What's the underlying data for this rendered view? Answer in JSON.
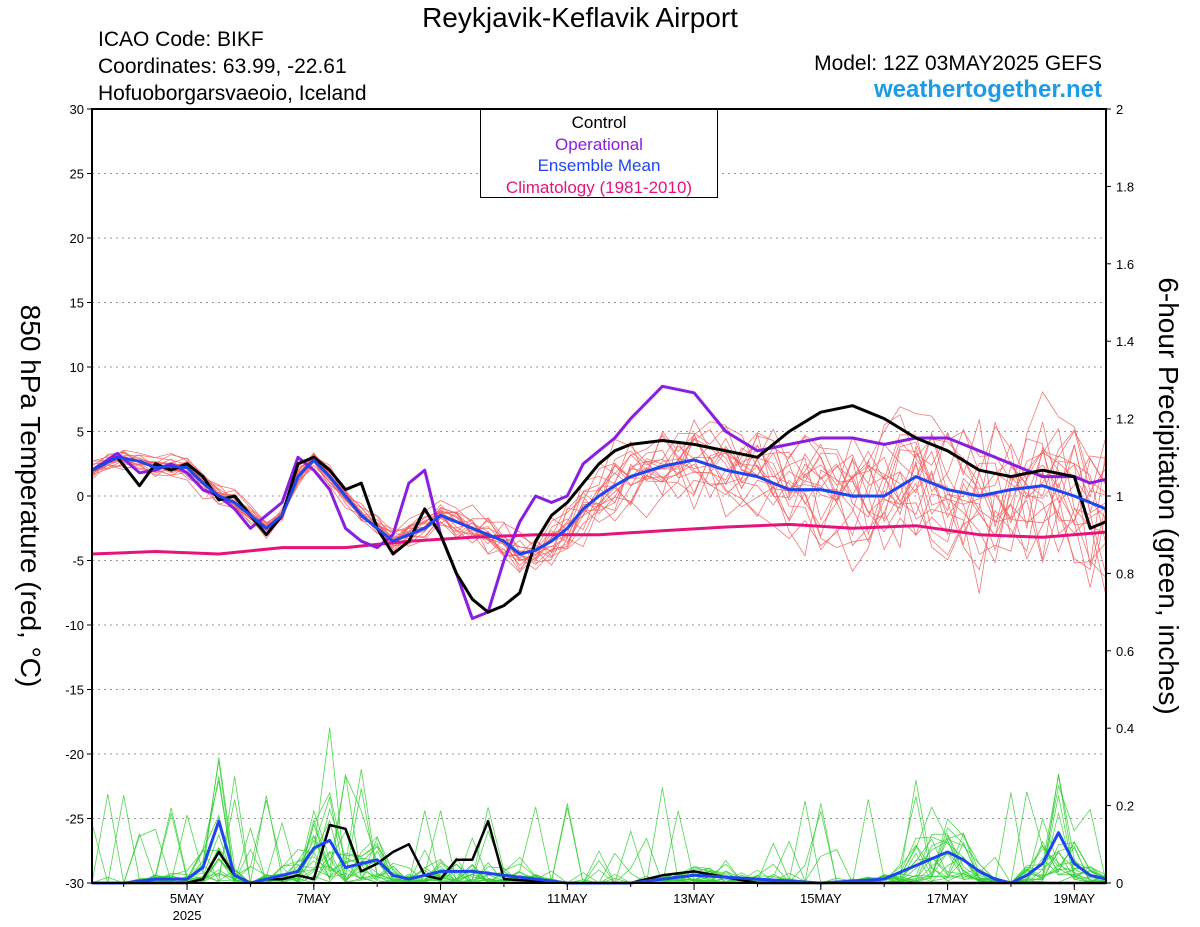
{
  "header": {
    "title": "Reykjavik-Keflavik Airport",
    "icao": "ICAO Code: BIKF",
    "coordinates": "Coordinates: 63.99, -22.61",
    "location": "Hofuoborgarsvaeoio, Iceland",
    "model": "Model: 12Z 03MAY2025 GEFS",
    "site": "weathertogether.net"
  },
  "legend": {
    "control": "Control",
    "operational": "Operational",
    "ensemble_mean": "Ensemble Mean",
    "climatology": "Climatology (1981-2010)"
  },
  "colors": {
    "control": "#000000",
    "operational": "#8a1ee0",
    "ensemble_mean": "#1e46f0",
    "climatology": "#e6137d",
    "members_temp": "#f06060",
    "members_precip": "#30d030",
    "site": "#1e9be6"
  },
  "chart_data": {
    "type": "line",
    "ylabel_left": "850 hPa Temperature (red, °C)",
    "ylabel_right": "6-hour Precipitation (green, inches)",
    "ylim_left": [
      -30,
      30
    ],
    "ylim_right": [
      0,
      2
    ],
    "left_ticks": [
      30,
      25,
      20,
      15,
      10,
      5,
      0,
      -5,
      -10,
      -15,
      -20,
      -25,
      -30
    ],
    "right_ticks": [
      "2",
      "1.8",
      "1.6",
      "1.4",
      "1.2",
      "1",
      "0.8",
      "0.6",
      "0.4",
      "0.2",
      "0"
    ],
    "x_ticks": [
      {
        "day": 5,
        "label": "5MAY",
        "sublabel": "2025"
      },
      {
        "day": 7,
        "label": "7MAY",
        "sublabel": ""
      },
      {
        "day": 9,
        "label": "9MAY",
        "sublabel": ""
      },
      {
        "day": 11,
        "label": "11MAY",
        "sublabel": ""
      },
      {
        "day": 13,
        "label": "13MAY",
        "sublabel": ""
      },
      {
        "day": 15,
        "label": "15MAY",
        "sublabel": ""
      },
      {
        "day": 17,
        "label": "17MAY",
        "sublabel": ""
      },
      {
        "day": 19,
        "label": "19MAY",
        "sublabel": ""
      }
    ],
    "x_range_days": [
      3.5,
      19.5
    ],
    "grid": "horizontal dotted",
    "legend_position": "top-center",
    "series": [
      {
        "name": "Control",
        "color": "#000000",
        "axis": "left",
        "x": [
          3.5,
          3.9,
          4.25,
          4.5,
          4.75,
          5.0,
          5.25,
          5.5,
          5.75,
          6.0,
          6.25,
          6.5,
          6.75,
          7.0,
          7.25,
          7.5,
          7.75,
          8.0,
          8.25,
          8.5,
          8.75,
          9.0,
          9.25,
          9.5,
          9.75,
          10.0,
          10.25,
          10.5,
          10.75,
          11.0,
          11.25,
          11.5,
          11.75,
          12.0,
          12.5,
          13.0,
          13.5,
          14.0,
          14.5,
          15.0,
          15.5,
          16.0,
          16.5,
          17.0,
          17.5,
          18.0,
          18.5,
          19.0,
          19.25,
          19.5
        ],
        "y": [
          2.0,
          3.0,
          0.8,
          2.5,
          2.0,
          2.5,
          1.5,
          -0.3,
          0.0,
          -1.5,
          -3.0,
          -1.5,
          2.5,
          3.0,
          2.0,
          0.5,
          1.0,
          -2.5,
          -4.5,
          -3.5,
          -1.0,
          -3.0,
          -6.0,
          -8.0,
          -9.0,
          -8.5,
          -7.5,
          -3.5,
          -1.5,
          -0.5,
          1.0,
          2.5,
          3.5,
          4.0,
          4.3,
          4.0,
          3.5,
          3.0,
          5.0,
          6.5,
          7.0,
          6.0,
          4.5,
          3.5,
          2.0,
          1.5,
          2.0,
          1.5,
          -2.5,
          -2.0
        ]
      },
      {
        "name": "Operational",
        "color": "#8a1ee0",
        "axis": "left",
        "x": [
          3.5,
          3.9,
          4.25,
          4.5,
          4.75,
          5.0,
          5.25,
          5.5,
          5.75,
          6.0,
          6.25,
          6.5,
          6.75,
          7.0,
          7.25,
          7.5,
          7.75,
          8.0,
          8.25,
          8.5,
          8.75,
          9.0,
          9.25,
          9.5,
          9.75,
          10.0,
          10.25,
          10.5,
          10.75,
          11.0,
          11.25,
          11.5,
          11.75,
          12.0,
          12.5,
          13.0,
          13.5,
          14.0,
          14.5,
          15.0,
          15.5,
          16.0,
          16.5,
          17.0,
          17.5,
          18.0,
          18.5,
          19.0,
          19.25,
          19.5
        ],
        "y": [
          2.0,
          3.3,
          1.8,
          2.0,
          2.5,
          1.8,
          0.5,
          0.0,
          -1.0,
          -2.5,
          -1.5,
          -0.5,
          3.0,
          2.0,
          0.5,
          -2.5,
          -3.5,
          -4.0,
          -3.0,
          1.0,
          2.0,
          -3.0,
          -6.0,
          -9.5,
          -9.0,
          -5.0,
          -2.0,
          0.0,
          -0.5,
          0.0,
          2.5,
          3.5,
          4.5,
          6.0,
          8.5,
          8.0,
          5.0,
          3.5,
          4.0,
          4.5,
          4.5,
          4.0,
          4.5,
          4.5,
          3.5,
          2.5,
          1.5,
          1.5,
          1.0,
          1.3
        ]
      },
      {
        "name": "Ensemble Mean",
        "color": "#1e46f0",
        "axis": "left",
        "x": [
          3.5,
          3.9,
          4.25,
          4.5,
          4.75,
          5.0,
          5.25,
          5.5,
          5.75,
          6.0,
          6.25,
          6.5,
          6.75,
          7.0,
          7.25,
          7.5,
          7.75,
          8.0,
          8.25,
          8.5,
          8.75,
          9.0,
          9.25,
          9.5,
          9.75,
          10.0,
          10.25,
          10.5,
          10.75,
          11.0,
          11.25,
          11.5,
          11.75,
          12.0,
          12.5,
          13.0,
          13.5,
          14.0,
          14.5,
          15.0,
          15.5,
          16.0,
          16.5,
          17.0,
          17.5,
          18.0,
          18.5,
          19.0,
          19.25,
          19.5
        ],
        "y": [
          2.0,
          3.0,
          2.7,
          2.2,
          2.3,
          2.2,
          1.0,
          0.0,
          -0.5,
          -1.5,
          -2.5,
          -1.5,
          1.5,
          2.8,
          1.5,
          0.0,
          -1.5,
          -2.5,
          -3.5,
          -3.0,
          -2.5,
          -1.5,
          -2.0,
          -2.5,
          -3.0,
          -3.5,
          -4.5,
          -4.2,
          -3.5,
          -2.5,
          -1.0,
          0.0,
          0.8,
          1.5,
          2.3,
          2.8,
          2.0,
          1.5,
          0.5,
          0.5,
          0.0,
          0.0,
          1.5,
          0.5,
          0.0,
          0.5,
          0.8,
          0.0,
          -0.5,
          -1.0
        ]
      },
      {
        "name": "Climatology (1981-2010)",
        "color": "#e6137d",
        "axis": "left",
        "x": [
          3.5,
          4.5,
          5.5,
          6.5,
          7.5,
          8.5,
          9.5,
          10.5,
          11.5,
          12.5,
          13.5,
          14.5,
          15.5,
          16.5,
          17.5,
          18.5,
          19.5
        ],
        "y": [
          -4.5,
          -4.3,
          -4.5,
          -4.0,
          -4.0,
          -3.5,
          -3.2,
          -3.0,
          -3.0,
          -2.7,
          -2.4,
          -2.2,
          -2.5,
          -2.3,
          -3.0,
          -3.2,
          -2.8
        ]
      },
      {
        "name": "Control",
        "color": "#000000",
        "axis": "right",
        "x": [
          3.5,
          4.0,
          4.5,
          5.0,
          5.25,
          5.5,
          5.75,
          6.0,
          6.25,
          6.5,
          6.75,
          7.0,
          7.25,
          7.5,
          7.75,
          8.0,
          8.25,
          8.5,
          8.75,
          9.0,
          9.25,
          9.5,
          9.75,
          10.0,
          11.0,
          12.0,
          12.5,
          13.0,
          14.0,
          16.0,
          17.0,
          18.0,
          19.0,
          19.5
        ],
        "y": [
          0.0,
          0.0,
          0.0,
          0.0,
          0.01,
          0.08,
          0.02,
          0.0,
          0.01,
          0.01,
          0.02,
          0.01,
          0.15,
          0.14,
          0.03,
          0.05,
          0.08,
          0.1,
          0.02,
          0.01,
          0.06,
          0.06,
          0.16,
          0.01,
          0.0,
          0.0,
          0.02,
          0.03,
          0.0,
          0.0,
          0.0,
          0.0,
          0.0,
          0.0
        ]
      },
      {
        "name": "Ensemble Mean",
        "color": "#1e46f0",
        "axis": "right",
        "x": [
          3.5,
          4.0,
          4.5,
          5.0,
          5.25,
          5.5,
          5.75,
          6.0,
          6.25,
          6.5,
          6.75,
          7.0,
          7.25,
          7.5,
          7.75,
          8.0,
          8.25,
          8.5,
          8.75,
          9.0,
          9.5,
          10.0,
          10.5,
          11.0,
          12.0,
          12.5,
          13.0,
          14.0,
          15.0,
          16.0,
          17.0,
          17.25,
          17.5,
          17.75,
          18.0,
          18.25,
          18.5,
          18.75,
          19.0,
          19.25,
          19.5
        ],
        "y": [
          0.0,
          0.0,
          0.01,
          0.01,
          0.04,
          0.16,
          0.02,
          0.0,
          0.01,
          0.02,
          0.03,
          0.09,
          0.11,
          0.04,
          0.05,
          0.06,
          0.02,
          0.01,
          0.02,
          0.03,
          0.03,
          0.02,
          0.01,
          0.0,
          0.0,
          0.01,
          0.02,
          0.01,
          0.0,
          0.01,
          0.08,
          0.06,
          0.03,
          0.01,
          0.0,
          0.02,
          0.05,
          0.13,
          0.05,
          0.02,
          0.01
        ]
      }
    ]
  }
}
